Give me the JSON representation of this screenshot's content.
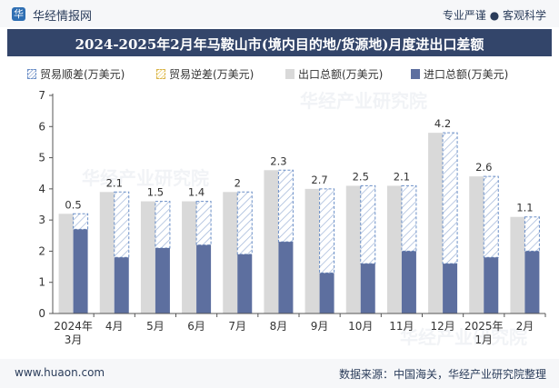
{
  "header": {
    "brand": "华经情报网",
    "tagline": "专业严谨 ● 客观科学"
  },
  "footer": {
    "website": "www.huaon.com",
    "source": "数据来源：中国海关，华经产业研究院整理"
  },
  "watermark": "华经产业研究院",
  "colors": {
    "export": "#d9d9d9",
    "import": "#5d6f9f",
    "surplus_border": "#6b8fc7",
    "title_bg": "#33456a"
  },
  "chart_data": {
    "type": "bar",
    "title": "2024-2025年2月年马鞍山市(境内目的地/货源地)月度进出口差额",
    "categories": [
      "2024年\n3月",
      "4月",
      "5月",
      "6月",
      "7月",
      "8月",
      "9月",
      "10月",
      "11月",
      "12月",
      "2025年\n1月",
      "2月"
    ],
    "series": [
      {
        "name": "贸易顺差(万美元)",
        "values": [
          0.5,
          2.1,
          1.5,
          1.4,
          2,
          2.3,
          2.7,
          2.5,
          2.1,
          4.2,
          2.6,
          1.1
        ]
      },
      {
        "name": "贸易逆差(万美元)",
        "values": [
          0,
          0,
          0,
          0,
          0,
          0,
          0,
          0,
          0,
          0,
          0,
          0
        ]
      },
      {
        "name": "出口总额(万美元)",
        "values": [
          3.2,
          3.9,
          3.6,
          3.6,
          3.9,
          4.6,
          4.0,
          4.1,
          4.1,
          5.8,
          4.4,
          3.1
        ]
      },
      {
        "name": "进口总额(万美元)",
        "values": [
          2.7,
          1.8,
          2.1,
          2.2,
          1.9,
          2.3,
          1.3,
          1.6,
          2.0,
          1.6,
          1.8,
          2.0
        ]
      }
    ],
    "data_labels": [
      "0.5",
      "2.1",
      "1.5",
      "1.4",
      "2",
      "2.3",
      "2.7",
      "2.5",
      "2.1",
      "4.2",
      "2.6",
      "1.1"
    ],
    "ylim": [
      0,
      7
    ],
    "yticks": [
      0,
      1,
      2,
      3,
      4,
      5,
      6,
      7
    ],
    "legend_position": "top",
    "grid": false
  }
}
